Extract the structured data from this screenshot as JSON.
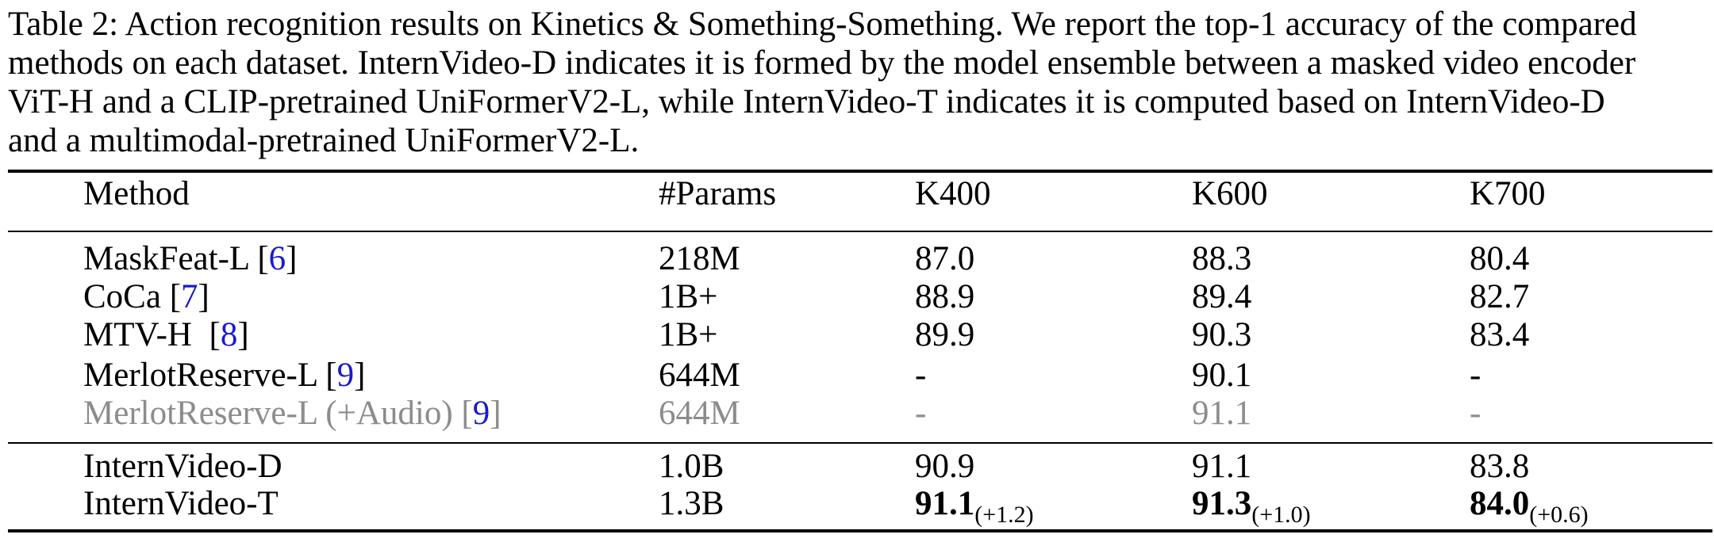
{
  "caption": {
    "lines": [
      "Table 2: Action recognition results on Kinetics & Something-Something. We report the top-1 accuracy of the compared",
      "methods on each dataset. InternVideo-D indicates it is formed by the model ensemble between a masked video encoder",
      "ViT-H and a CLIP-pretrained UniFormerV2-L, while InternVideo-T indicates it is computed based on InternVideo-D",
      "and a multimodal-pretrained UniFormerV2-L."
    ]
  },
  "table": {
    "headers": {
      "method": "Method",
      "params": "#Params",
      "k400": "K400",
      "k600": "K600",
      "k700": "K700"
    },
    "group1": [
      {
        "method": "MaskFeat-L [",
        "cite": "6",
        "close": "]",
        "params": "218M",
        "k400": "87.0",
        "k600": "88.3",
        "k700": "80.4"
      },
      {
        "method": "CoCa [",
        "cite": "7",
        "close": "]",
        "params": "1B+",
        "k400": "88.9",
        "k600": "89.4",
        "k700": "82.7"
      },
      {
        "method": "MTV-H  [",
        "cite": "8",
        "close": "]",
        "params": "1B+",
        "k400": "89.9",
        "k600": "90.3",
        "k700": "83.4"
      },
      {
        "method": "MerlotReserve-L [",
        "cite": "9",
        "close": "]",
        "params": "644M",
        "k400": "-",
        "k600": "90.1",
        "k700": "-"
      },
      {
        "method": "MerlotReserve-L (+Audio) [",
        "cite": "9",
        "close": "]",
        "params": "644M",
        "k400": "-",
        "k600": "91.1",
        "k700": "-"
      }
    ],
    "group2": [
      {
        "method": "InternVideo-D",
        "params": "1.0B",
        "k400": "90.9",
        "k600": "91.1",
        "k700": "83.8"
      },
      {
        "method": "InternVideo-T",
        "params": "1.3B",
        "k400": "91.1",
        "k400_delta": "(+1.2)",
        "k600": "91.3",
        "k600_delta": "(+1.0)",
        "k700": "84.0",
        "k700_delta": "(+0.6)"
      }
    ]
  }
}
